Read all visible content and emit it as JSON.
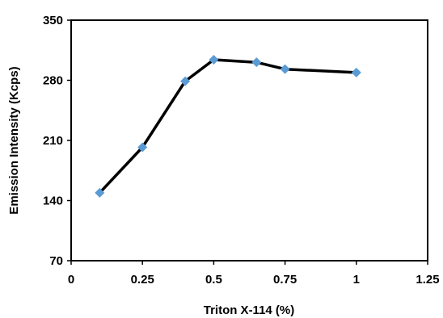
{
  "chart_data": {
    "type": "line",
    "title": "",
    "xlabel": "Triton X-114 (%)",
    "ylabel": "Emission Intensity (Kcps)",
    "xlim": [
      0,
      1.25
    ],
    "ylim": [
      70,
      350
    ],
    "xticks": [
      0,
      0.25,
      0.5,
      0.75,
      1,
      1.25
    ],
    "xtick_labels": [
      "0",
      "0.25",
      "0.5",
      "0.75",
      "1",
      "1.25"
    ],
    "yticks": [
      70,
      140,
      210,
      280,
      350
    ],
    "ytick_labels": [
      "70",
      "140",
      "210",
      "280",
      "350"
    ],
    "grid": false,
    "legend": "none",
    "series": [
      {
        "x": [
          0.1,
          0.25,
          0.4,
          0.5,
          0.65,
          0.75,
          1.0
        ],
        "y": [
          149,
          202,
          279,
          304,
          301,
          293,
          289
        ],
        "line_color": "#000000",
        "marker": "diamond",
        "marker_color": "#5b9bd5"
      }
    ]
  }
}
